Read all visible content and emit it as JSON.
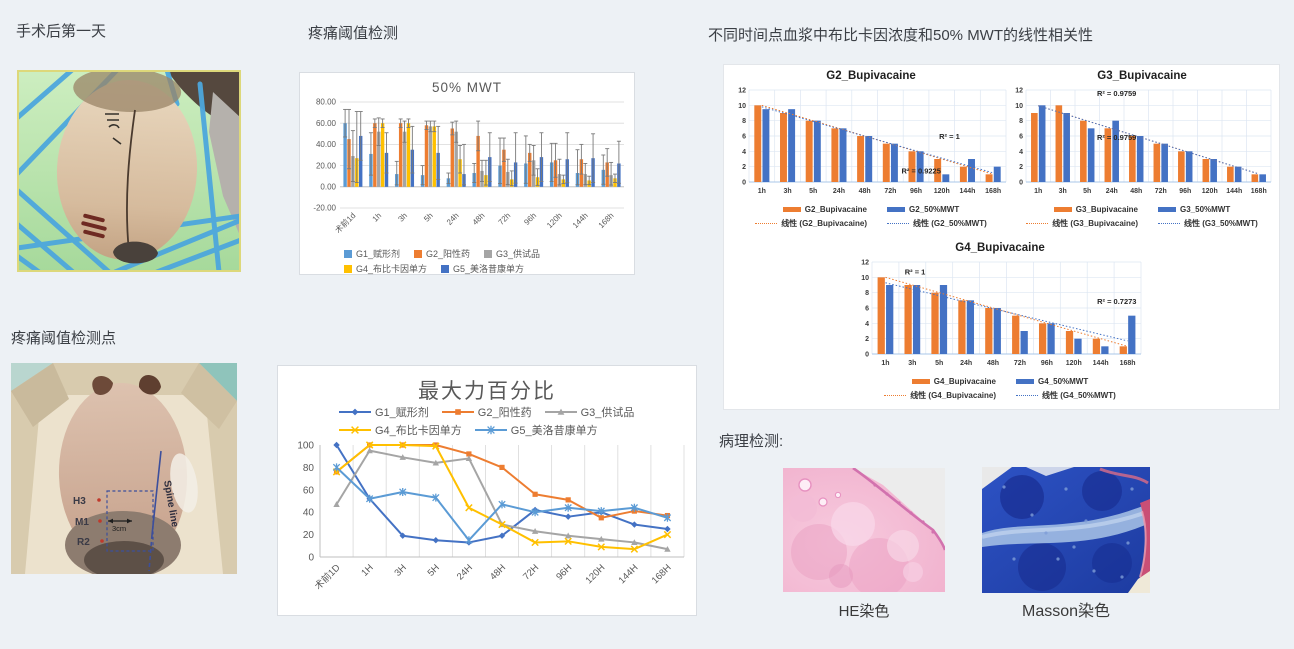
{
  "headings": {
    "surgery_day1": "手术后第一天",
    "pain_threshold": "疼痛阈值检测",
    "pain_points": "疼痛阈值检测点",
    "correlation": "不同时间点血浆中布比卡因浓度和50% MWT的线性相关性",
    "pathology": "病理检测:"
  },
  "pathology": {
    "he_label": "HE染色",
    "masson_label": "Masson染色"
  },
  "photo_annotations": {
    "spine_line": "Spine line",
    "h3": "H3",
    "m1": "M1",
    "r2": "R2",
    "scale": "3cm"
  },
  "colors": {
    "page_bg": "#edf1f5",
    "panel_bg": "#ffffff",
    "panel_border": "#d9dde2",
    "g1_blue": "#5B9BD5",
    "g2_orange": "#ED7D31",
    "g3_gray": "#A5A5A5",
    "g4_yellow": "#FFC000",
    "g5_dark_blue": "#4472C4"
  },
  "chart_data": [
    {
      "id": "mwt50",
      "type": "bar",
      "title": "50% MWT",
      "categories": [
        "术前1d",
        "1h",
        "3h",
        "5h",
        "24h",
        "48h",
        "72h",
        "96h",
        "120h",
        "144h",
        "168h"
      ],
      "ylim": [
        -20,
        80
      ],
      "ytick_step": 20,
      "grid": "horizontal",
      "legend_position": "bottom",
      "series": [
        {
          "name": "G1_赋形剂",
          "color": "#5B9BD5",
          "values": [
            60,
            31,
            12,
            11,
            8,
            13,
            20,
            22,
            23,
            13,
            16
          ],
          "errors": [
            13,
            20,
            12,
            9,
            5,
            9,
            26,
            26,
            18,
            22,
            14
          ]
        },
        {
          "name": "G2_阳性药",
          "color": "#ED7D31",
          "values": [
            45,
            60,
            60,
            58,
            55,
            48,
            35,
            32,
            25,
            26,
            23
          ],
          "errors": [
            28,
            4,
            4,
            4,
            6,
            14,
            11,
            8,
            16,
            14,
            13
          ]
        },
        {
          "name": "G3_供试品",
          "color": "#A5A5A5",
          "values": [
            29,
            52,
            52,
            57,
            52,
            15,
            14,
            25,
            12,
            12,
            11
          ],
          "errors": [
            24,
            13,
            10,
            5,
            10,
            10,
            12,
            14,
            14,
            10,
            12
          ]
        },
        {
          "name": "G4_布比卡因单方",
          "color": "#FFC000",
          "values": [
            27,
            60,
            60,
            57,
            26,
            11,
            7,
            9,
            7,
            6,
            8
          ],
          "errors": [
            44,
            4,
            4,
            5,
            13,
            14,
            8,
            8,
            4,
            4,
            4
          ]
        },
        {
          "name": "G5_美洛昔康单方",
          "color": "#4472C4",
          "values": [
            48,
            32,
            35,
            32,
            12,
            28,
            23,
            28,
            26,
            27,
            22
          ],
          "errors": [
            23,
            19,
            22,
            25,
            28,
            23,
            28,
            23,
            25,
            23,
            21
          ]
        }
      ]
    },
    {
      "id": "g2",
      "type": "bar-trend",
      "title": "G2_Bupivacaine",
      "categories": [
        "1h",
        "3h",
        "5h",
        "24h",
        "48h",
        "72h",
        "96h",
        "120h",
        "144h",
        "168h"
      ],
      "ylim": [
        0,
        12
      ],
      "ytick_step": 2,
      "grid": "both",
      "legend_position": "bottom",
      "series": [
        {
          "name": "G2_Bupivacaine",
          "color": "#ED7D31",
          "values": [
            10,
            9,
            8,
            7,
            6,
            5,
            4,
            3,
            2,
            1
          ]
        },
        {
          "name": "G2_50%MWT",
          "color": "#4472C4",
          "values": [
            9.5,
            9.5,
            8,
            7,
            6,
            5,
            4,
            1,
            3,
            2
          ]
        }
      ],
      "trend_labels": [
        "线性 (G2_Bupivacaine)",
        "线性 (G2_50%MWT)"
      ],
      "annotations": [
        {
          "text": "R² = 1",
          "xi": 7.3,
          "v": 5.6
        },
        {
          "text": "R² = 0.9225",
          "xi": 6.2,
          "v": 1.1
        }
      ]
    },
    {
      "id": "g3",
      "type": "bar-trend",
      "title": "G3_Bupivacaine",
      "categories": [
        "1h",
        "3h",
        "5h",
        "24h",
        "48h",
        "72h",
        "96h",
        "120h",
        "144h",
        "168h"
      ],
      "ylim": [
        0,
        12
      ],
      "ytick_step": 2,
      "grid": "both",
      "legend_position": "bottom",
      "series": [
        {
          "name": "G3_Bupivacaine",
          "color": "#ED7D31",
          "values": [
            9,
            10,
            8,
            7,
            6,
            5,
            4,
            3,
            2,
            1
          ]
        },
        {
          "name": "G3_50%MWT",
          "color": "#4472C4",
          "values": [
            10,
            9,
            7,
            8,
            6,
            5,
            4,
            3,
            2,
            1
          ]
        }
      ],
      "trend_labels": [
        "线性 (G3_Bupivacaine)",
        "线性 (G3_50%MWT)"
      ],
      "annotations": [
        {
          "text": "R² = 0.9759",
          "xi": 3.2,
          "v": 11.2
        },
        {
          "text": "R² = 0.9759",
          "xi": 3.2,
          "v": 5.5
        }
      ]
    },
    {
      "id": "g4",
      "type": "bar-trend",
      "title": "G4_Bupivacaine",
      "categories": [
        "1h",
        "3h",
        "5h",
        "24h",
        "48h",
        "72h",
        "96h",
        "120h",
        "144h",
        "168h"
      ],
      "ylim": [
        0,
        12
      ],
      "ytick_step": 2,
      "grid": "both",
      "legend_position": "bottom",
      "series": [
        {
          "name": "G4_Bupivacaine",
          "color": "#ED7D31",
          "values": [
            10,
            9,
            8,
            7,
            6,
            5,
            4,
            3,
            2,
            1
          ]
        },
        {
          "name": "G4_50%MWT",
          "color": "#4472C4",
          "values": [
            9,
            9,
            9,
            7,
            6,
            3,
            4,
            2,
            1,
            5
          ]
        }
      ],
      "trend_labels": [
        "线性 (G4_Bupivacaine)",
        "线性 (G4_50%MWT)"
      ],
      "annotations": [
        {
          "text": "R² = 1",
          "xi": 1.1,
          "v": 10.4
        },
        {
          "text": "R² = 0.7273",
          "xi": 8.6,
          "v": 6.5
        }
      ]
    },
    {
      "id": "maxforce",
      "type": "line",
      "title": "最大力百分比",
      "categories": [
        "术前1D",
        "1H",
        "3H",
        "5H",
        "24H",
        "48H",
        "72H",
        "96H",
        "120H",
        "144H",
        "168H"
      ],
      "ylim": [
        0,
        100
      ],
      "ytick_step": 20,
      "grid": "vertical",
      "legend_position": "top",
      "series": [
        {
          "name": "G1_赋形剂",
          "color": "#4472C4",
          "marker": "diamond",
          "values": [
            100,
            52,
            19,
            15,
            13,
            19,
            42,
            36,
            40,
            29,
            25
          ]
        },
        {
          "name": "G2_阳性药",
          "color": "#ED7D31",
          "marker": "square",
          "values": [
            76,
            100,
            100,
            100,
            92,
            80,
            56,
            51,
            35,
            41,
            37
          ]
        },
        {
          "name": "G3_供试品",
          "color": "#A5A5A5",
          "marker": "triangle",
          "values": [
            47,
            95,
            89,
            84,
            88,
            29,
            23,
            19,
            16,
            13,
            7
          ]
        },
        {
          "name": "G4_布比卡因单方",
          "color": "#FFC000",
          "marker": "x",
          "values": [
            76,
            100,
            100,
            99,
            44,
            29,
            13,
            14,
            9,
            7,
            20
          ]
        },
        {
          "name": "G5_美洛昔康单方",
          "color": "#5B9BD5",
          "marker": "star",
          "values": [
            80,
            52,
            58,
            53,
            15,
            47,
            40,
            44,
            41,
            44,
            35
          ]
        }
      ]
    }
  ]
}
